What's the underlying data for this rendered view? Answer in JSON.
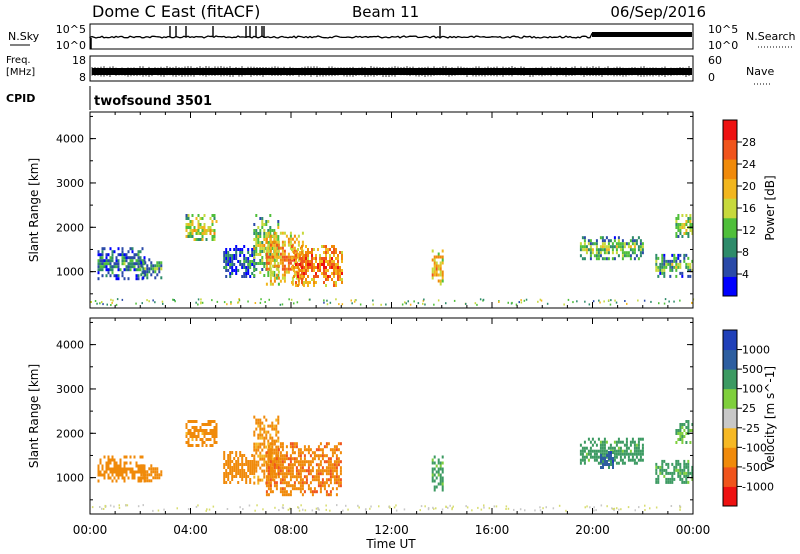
{
  "header": {
    "title": "Dome C East (fitACF)",
    "beam": "Beam 11",
    "date": "06/Sep/2016"
  },
  "noise_panel": {
    "left_label": "N.Sky",
    "right_label": "N.Search",
    "left_ticks": [
      "10^5",
      "10^0"
    ],
    "right_ticks": [
      "10^5",
      "10^0"
    ]
  },
  "freq_panel": {
    "left_label_line1": "Freq.",
    "left_label_line2": "[MHz]",
    "right_label": "Nave",
    "left_ticks": [
      "18",
      "8"
    ],
    "right_ticks": [
      "60",
      "0"
    ]
  },
  "cpid": {
    "label": "CPID",
    "program": "twofsound 3501"
  },
  "time_axis": {
    "label": "Time UT",
    "ticks": [
      "00:00",
      "04:00",
      "08:00",
      "12:00",
      "16:00",
      "20:00",
      "00:00"
    ]
  },
  "colors": {
    "power_scale": [
      "#0000ff",
      "#2a4aa8",
      "#2e8b6a",
      "#4fbf3a",
      "#c7d93c",
      "#f2b61e",
      "#f08a0a",
      "#f0541c",
      "#ee1111"
    ],
    "velocity_scale": [
      "#ee1111",
      "#f0541c",
      "#f08a0a",
      "#f6b824",
      "#c8c8c8",
      "#7fcf3c",
      "#3c9a62",
      "#2d5ea0",
      "#2040b8"
    ]
  },
  "chart_data": [
    {
      "type": "heatmap",
      "name": "power",
      "ylabel": "Slant Range [km]",
      "ylim": [
        180,
        4600
      ],
      "yticks": [
        1000,
        2000,
        3000,
        4000
      ],
      "colorbar": {
        "label": "Power [dB]",
        "range": [
          0,
          32
        ],
        "ticks": [
          4,
          8,
          12,
          16,
          20,
          24,
          28
        ]
      },
      "x_unit": "hours UT",
      "xlim": [
        0,
        24
      ],
      "regions": [
        {
          "t": [
            0.3,
            2.2
          ],
          "r": [
            850,
            1550
          ],
          "v": 10
        },
        {
          "t": [
            2.0,
            2.8
          ],
          "r": [
            850,
            1300
          ],
          "v": 11
        },
        {
          "t": [
            3.8,
            5.0
          ],
          "r": [
            1700,
            2300
          ],
          "v": 18
        },
        {
          "t": [
            5.3,
            6.5
          ],
          "r": [
            900,
            1600
          ],
          "v": 8
        },
        {
          "t": [
            6.5,
            7.5
          ],
          "r": [
            900,
            2300
          ],
          "v": 16
        },
        {
          "t": [
            7.0,
            8.5
          ],
          "r": [
            700,
            1900
          ],
          "v": 23
        },
        {
          "t": [
            8.0,
            10.0
          ],
          "r": [
            700,
            1600
          ],
          "v": 26
        },
        {
          "t": [
            13.6,
            14.0
          ],
          "r": [
            700,
            1500
          ],
          "v": 22
        },
        {
          "t": [
            19.5,
            22.0
          ],
          "r": [
            1300,
            1800
          ],
          "v": 14
        },
        {
          "t": [
            22.5,
            24.0
          ],
          "r": [
            900,
            1400
          ],
          "v": 13
        },
        {
          "t": [
            23.3,
            24.0
          ],
          "r": [
            1800,
            2300
          ],
          "v": 17
        }
      ]
    },
    {
      "type": "heatmap",
      "name": "velocity",
      "ylabel": "Slant Range [km]",
      "ylim": [
        180,
        4600
      ],
      "yticks": [
        1000,
        2000,
        3000,
        4000
      ],
      "colorbar": {
        "label": "Velocity [m s^-1]",
        "ticks": [
          "1000",
          "500",
          "100",
          "25",
          "-25",
          "-100",
          "-500",
          "-1000"
        ]
      },
      "x_unit": "hours UT",
      "xlim": [
        0,
        24
      ],
      "regions": [
        {
          "t": [
            0.3,
            2.2
          ],
          "r": [
            900,
            1500
          ],
          "v": -300
        },
        {
          "t": [
            2.0,
            2.8
          ],
          "r": [
            900,
            1300
          ],
          "v": -300
        },
        {
          "t": [
            3.8,
            5.0
          ],
          "r": [
            1700,
            2300
          ],
          "v": -200
        },
        {
          "t": [
            5.3,
            6.5
          ],
          "r": [
            900,
            1600
          ],
          "v": -250
        },
        {
          "t": [
            6.5,
            7.5
          ],
          "r": [
            900,
            2400
          ],
          "v": -150
        },
        {
          "t": [
            7.0,
            10.0
          ],
          "r": [
            600,
            1800
          ],
          "v": -400
        },
        {
          "t": [
            13.6,
            14.0
          ],
          "r": [
            700,
            1500
          ],
          "v": 150
        },
        {
          "t": [
            19.5,
            22.0
          ],
          "r": [
            1300,
            1900
          ],
          "v": 200
        },
        {
          "t": [
            20.3,
            20.8
          ],
          "r": [
            1200,
            1600
          ],
          "v": 700
        },
        {
          "t": [
            22.5,
            24.0
          ],
          "r": [
            900,
            1400
          ],
          "v": 150
        },
        {
          "t": [
            23.3,
            24.0
          ],
          "r": [
            1800,
            2300
          ],
          "v": 100
        }
      ]
    }
  ]
}
